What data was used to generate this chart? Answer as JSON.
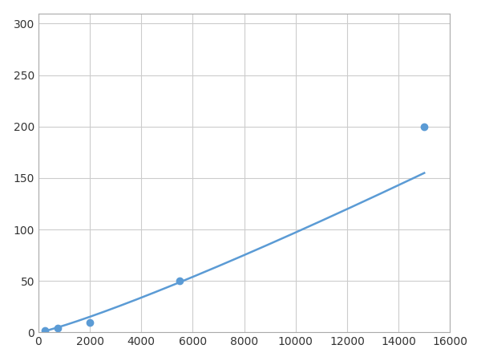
{
  "x": [
    250,
    750,
    2000,
    5500,
    15000
  ],
  "y": [
    2,
    4,
    10,
    50,
    200
  ],
  "line_color": "#5b9bd5",
  "marker_color": "#5b9bd5",
  "marker_size": 6,
  "marker_style": "o",
  "line_width": 1.8,
  "xlim": [
    0,
    16000
  ],
  "ylim": [
    0,
    310
  ],
  "xticks": [
    0,
    2000,
    4000,
    6000,
    8000,
    10000,
    12000,
    14000,
    16000
  ],
  "yticks": [
    0,
    50,
    100,
    150,
    200,
    250,
    300
  ],
  "grid_color": "#cccccc",
  "background_color": "#ffffff",
  "spine_color": "#aaaaaa"
}
